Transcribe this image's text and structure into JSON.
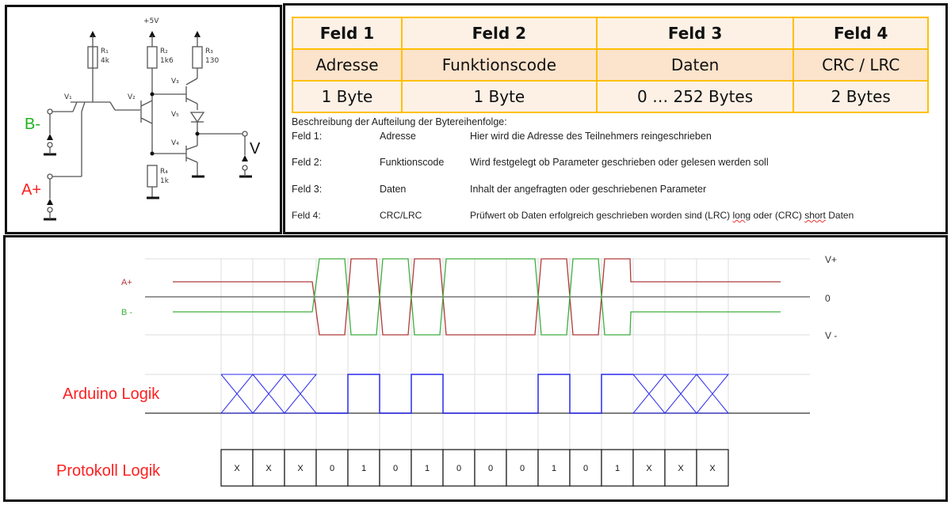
{
  "circuit": {
    "supply": "+5V",
    "r1": "R₁",
    "r1v": "4k",
    "r2": "R₂",
    "r2v": "1k6",
    "r3": "R₃",
    "r3v": "130",
    "r4": "R₄",
    "r4v": "1k",
    "v1": "V₁",
    "v2": "V₂",
    "v3": "V₃",
    "v4": "V₄",
    "v5": "V₅",
    "in_b": "B-",
    "in_a": "A+",
    "out": "V"
  },
  "table": {
    "header": [
      "Feld 1",
      "Feld 2",
      "Feld 3",
      "Feld 4"
    ],
    "names": [
      "Adresse",
      "Funktionscode",
      "Daten",
      "CRC / LRC"
    ],
    "sizes": [
      "1 Byte",
      "1 Byte",
      "0 … 252 Bytes",
      "2 Bytes"
    ]
  },
  "description": {
    "title": "Beschreibung der Aufteilung der Bytereihenfolge:",
    "rows": [
      {
        "field": "Feld 1:",
        "name": "Adresse",
        "text": "Hier wird die Adresse des Teilnehmers reingeschrieben"
      },
      {
        "field": "Feld 2:",
        "name": "Funktionscode",
        "text": "Wird festgelegt ob Parameter geschrieben oder gelesen werden soll"
      },
      {
        "field": "Feld 3:",
        "name": "Daten",
        "text": "Inhalt der angefragten oder geschriebenen Parameter"
      },
      {
        "field": "Feld 4:",
        "name": "CRC/LRC",
        "text_a": "Prüfwert ob Daten erfolgreich geschrieben worden sind (LRC) ",
        "text_b": "long",
        "text_c": " oder (CRC) ",
        "text_d": "short",
        "text_e": " Daten"
      }
    ]
  },
  "timing": {
    "label_a": "A+",
    "label_b": "B -",
    "level_pos": "V+",
    "level_zero": "0",
    "level_neg": "V -",
    "arduino_label": "Arduino Logik",
    "protocol_label": "Protokoll Logik",
    "bits": [
      "X",
      "X",
      "X",
      "0",
      "1",
      "0",
      "1",
      "0",
      "0",
      "0",
      "1",
      "0",
      "1",
      "X",
      "X",
      "X"
    ],
    "colors": {
      "a": "#b03a3a",
      "b": "#3fae3f",
      "logic": "#2a2aee",
      "label_red": "#ff2020",
      "label_green": "#1db21d"
    }
  }
}
